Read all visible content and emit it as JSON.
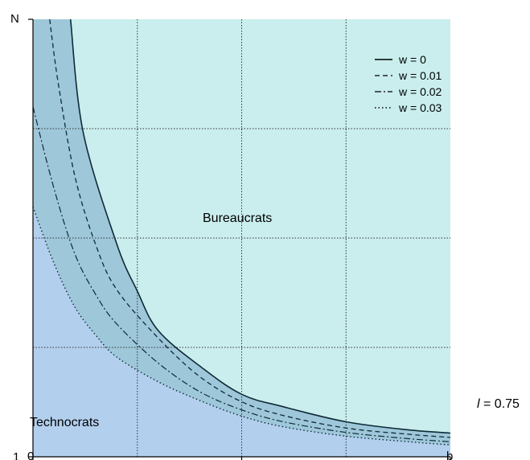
{
  "chart_data": {
    "type": "line",
    "x_axis": {
      "start_label": "0",
      "end_label": "b",
      "range": [
        0,
        1
      ]
    },
    "y_axis": {
      "start_label": "1",
      "end_label": "N",
      "range": [
        1,
        8
      ]
    },
    "grid": true,
    "region_labels": {
      "upper": "Bureaucrats",
      "lower": "Technocrats"
    },
    "parameter_label": {
      "symbol": "l",
      "rest": " = 0.75"
    },
    "legend_position": "top-right",
    "series": [
      {
        "name": "w = 0",
        "style": "solid",
        "x": [
          0.09,
          0.12,
          0.2,
          0.25,
          0.3,
          0.4,
          0.5,
          0.6,
          0.75,
          0.9,
          1.0
        ],
        "y": [
          8,
          6.2,
          4.42,
          3.65,
          3.02,
          2.45,
          2.0,
          1.8,
          1.56,
          1.43,
          1.38
        ]
      },
      {
        "name": "w = 0.01",
        "style": "dashed",
        "x": [
          0.04,
          0.06,
          0.1,
          0.15,
          0.2,
          0.3,
          0.4,
          0.5,
          0.6,
          0.75,
          0.9,
          1.0
        ],
        "y": [
          8,
          7.0,
          5.5,
          4.4,
          3.68,
          2.9,
          2.28,
          1.88,
          1.66,
          1.46,
          1.36,
          1.31
        ]
      },
      {
        "name": "w = 0.02",
        "style": "dashdot",
        "x": [
          0.0,
          0.05,
          0.1,
          0.15,
          0.2,
          0.3,
          0.4,
          0.5,
          0.6,
          0.75,
          0.9,
          1.0
        ],
        "y": [
          6.6,
          5.3,
          4.25,
          3.6,
          3.13,
          2.5,
          2.04,
          1.75,
          1.56,
          1.39,
          1.29,
          1.24
        ]
      },
      {
        "name": "w = 0.03",
        "style": "dotted",
        "x": [
          0.0,
          0.05,
          0.1,
          0.15,
          0.2,
          0.3,
          0.4,
          0.5,
          0.6,
          0.75,
          0.9,
          1.0
        ],
        "y": [
          5.0,
          4.1,
          3.4,
          2.95,
          2.6,
          2.2,
          1.9,
          1.65,
          1.48,
          1.33,
          1.24,
          1.19
        ]
      }
    ]
  },
  "colors": {
    "bureaucrat_region": "#c9eeed",
    "technocrat_region": "#b3cfee",
    "band_region": "#9ec7da",
    "curve": "#0f2a37",
    "grid": "#333333"
  }
}
